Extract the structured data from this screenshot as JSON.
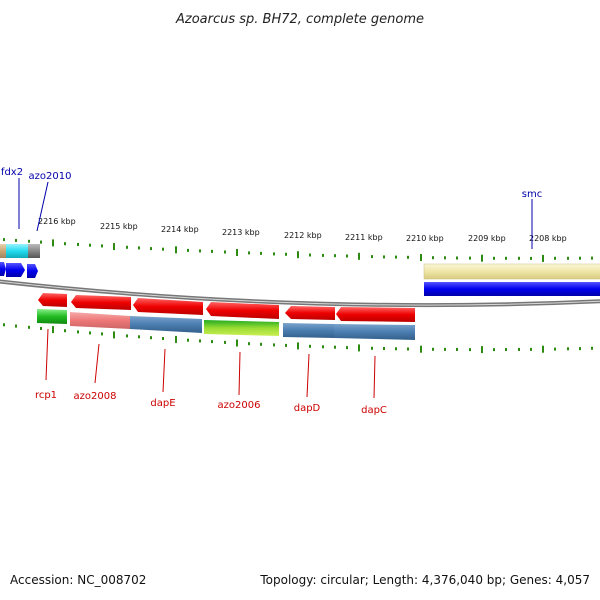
{
  "title": "Azoarcus sp. BH72, complete genome",
  "footer": {
    "accession": "Accession: NC_008702",
    "summary": "Topology: circular; Length: 4,376,040 bp; Genes: 4,057"
  },
  "colors": {
    "tick": "#2e8b12",
    "label_red": "#cc0000",
    "label_blue": "#0000aa",
    "backbone": "#8a8a8a",
    "gene_red": "#ee1111",
    "gene_blue": "#1111ee",
    "gene_green": "#33bb33",
    "gene_salmon": "#ee8080",
    "gene_steel": "#4f7fb2",
    "gene_lime": "#88cc22",
    "gene_cream": "#f0e8a8",
    "gene_cyan": "#33ddee",
    "gene_tan": "#d2b48c"
  },
  "scale": {
    "unit": "kbp",
    "ticks": [
      "2216 kbp",
      "2215 kbp",
      "2214 kbp",
      "2213 kbp",
      "2212 kbp",
      "2211 kbp",
      "2210 kbp",
      "2209 kbp",
      "2208 kbp"
    ]
  },
  "genes_top": [
    {
      "label": "fdx2",
      "color": "label_blue"
    },
    {
      "label": "azo2010",
      "color": "label_blue"
    },
    {
      "label": "smc",
      "color": "label_blue"
    }
  ],
  "genes_bottom": [
    {
      "label": "rcp1",
      "color": "label_red"
    },
    {
      "label": "azo2008",
      "color": "label_red"
    },
    {
      "label": "dapE",
      "color": "label_red"
    },
    {
      "label": "azo2006",
      "color": "label_red"
    },
    {
      "label": "dapD",
      "color": "label_red"
    },
    {
      "label": "dapC",
      "color": "label_red"
    }
  ]
}
